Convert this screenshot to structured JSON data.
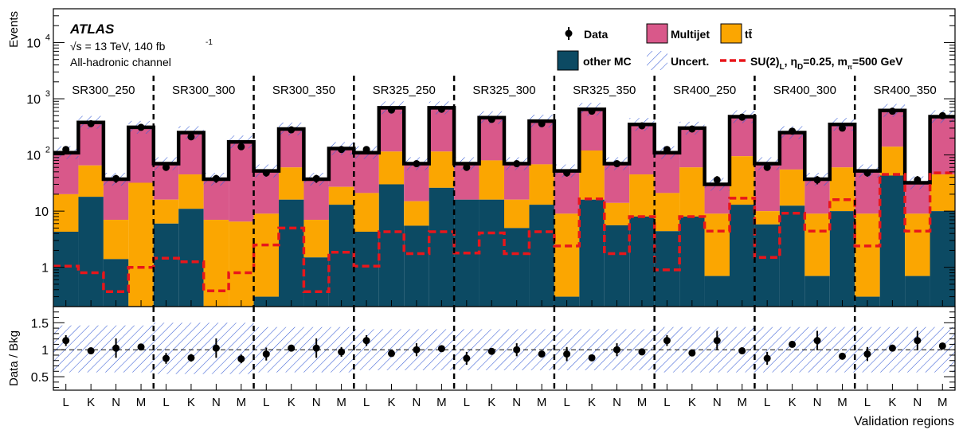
{
  "chart_data": {
    "type": "bar",
    "stacked": true,
    "log_scale": true,
    "ylabel": "Events",
    "xlabel": "Validation regions",
    "ylim": [
      0.2,
      40000
    ],
    "y_ticks": [
      {
        "value": 1,
        "base": "1",
        "exp": ""
      },
      {
        "value": 10,
        "base": "10",
        "exp": ""
      },
      {
        "value": 100,
        "base": "10",
        "exp": "2"
      },
      {
        "value": 1000,
        "base": "10",
        "exp": "3"
      },
      {
        "value": 10000,
        "base": "10",
        "exp": "4"
      }
    ],
    "experiment": "ATLAS",
    "energy_label": "√s = 13 TeV, 140 fb",
    "energy_exp": "-1",
    "channel_label": "All-hadronic channel",
    "legend": {
      "data": "Data",
      "multijet": "Multijet",
      "ttbar": "tt̄",
      "other": "other MC",
      "uncert": "Uncert.",
      "signal_main": "SU(2)",
      "signal_sub1": "L",
      "signal_mid": ", η",
      "signal_sub2": "D",
      "signal_mid2": "=0.25, m",
      "signal_sub3": "π",
      "signal_end": "=500 GeV"
    },
    "colors": {
      "multijet": "#d9588a",
      "ttbar": "#fba601",
      "other": "#0c4a63",
      "signal": "#e8161b",
      "uncert": "#3b5fd6"
    },
    "groups": [
      "SR300_250",
      "SR300_300",
      "SR300_350",
      "SR325_250",
      "SR325_300",
      "SR325_350",
      "SR400_250",
      "SR400_300",
      "SR400_350"
    ],
    "sub_bins": [
      "L",
      "K",
      "N",
      "M"
    ],
    "other_mc": [
      4.3,
      18,
      1.4,
      0.2,
      6,
      11,
      0.2,
      0.2,
      0.3,
      16,
      1.5,
      13,
      4.3,
      30,
      5.5,
      26,
      16,
      16,
      5,
      13,
      0.3,
      16,
      5.6,
      8,
      4.4,
      8,
      0.7,
      13,
      5.8,
      12.5,
      0.7,
      10,
      0.3,
      43,
      0.7,
      10
    ],
    "ttbar_top": [
      20,
      65,
      7,
      32,
      16,
      45,
      7,
      6.5,
      9,
      60,
      7,
      27,
      21,
      115,
      15,
      115,
      16,
      80,
      16,
      68,
      9,
      120,
      14,
      45,
      21,
      60,
      9,
      95,
      10,
      55,
      9,
      60,
      9,
      140,
      9,
      45
    ],
    "total": [
      110,
      380,
      37,
      310,
      70,
      250,
      37,
      170,
      52,
      290,
      37,
      130,
      110,
      690,
      70,
      690,
      70,
      460,
      70,
      400,
      52,
      650,
      70,
      350,
      110,
      300,
      30,
      480,
      70,
      250,
      37,
      350,
      52,
      620,
      32,
      480
    ],
    "data": [
      125,
      360,
      38,
      310,
      60,
      210,
      38,
      140,
      48,
      280,
      38,
      125,
      125,
      630,
      70,
      650,
      60,
      430,
      70,
      360,
      48,
      600,
      70,
      330,
      125,
      290,
      36,
      470,
      60,
      265,
      36,
      300,
      48,
      600,
      36,
      500
    ],
    "signal": [
      1.05,
      0.8,
      0.37,
      1.0,
      1.45,
      1.25,
      0.38,
      0.8,
      2.5,
      5.0,
      0.37,
      1.85,
      1.05,
      4.3,
      1.75,
      4.3,
      1.8,
      4.1,
      1.75,
      4.3,
      2.4,
      16.5,
      1.75,
      8,
      0.9,
      8,
      4.4,
      17,
      1.5,
      9.2,
      4.4,
      16,
      2.4,
      45,
      4.4,
      48
    ],
    "ratio": [
      1.17,
      0.98,
      1.03,
      1.05,
      0.84,
      0.85,
      1.03,
      0.83,
      0.92,
      1.03,
      1.03,
      0.96,
      1.17,
      0.93,
      1.0,
      1.02,
      0.84,
      0.97,
      1.0,
      0.92,
      0.92,
      0.85,
      1.0,
      0.96,
      1.17,
      0.94,
      1.17,
      0.98,
      0.84,
      1.1,
      1.17,
      0.88,
      0.92,
      1.03,
      1.17,
      1.07
    ],
    "ratio_err": [
      0.1,
      0.06,
      0.18,
      0.06,
      0.1,
      0.07,
      0.18,
      0.08,
      0.12,
      0.06,
      0.18,
      0.09,
      0.1,
      0.04,
      0.12,
      0.04,
      0.12,
      0.05,
      0.12,
      0.05,
      0.13,
      0.04,
      0.12,
      0.06,
      0.1,
      0.06,
      0.18,
      0.05,
      0.12,
      0.06,
      0.18,
      0.06,
      0.13,
      0.04,
      0.18,
      0.05
    ],
    "ratio_band": [
      [
        0.58,
        1.45
      ],
      [
        0.55,
        1.5
      ],
      [
        0.58,
        1.42
      ],
      [
        0.62,
        1.38
      ],
      [
        0.62,
        1.38
      ],
      [
        0.62,
        1.38
      ],
      [
        0.58,
        1.42
      ],
      [
        0.58,
        1.42
      ],
      [
        0.58,
        1.42
      ]
    ],
    "ratio_panel": {
      "ylabel": "Data / Bkg",
      "ylim": [
        0.25,
        1.8
      ],
      "y_ticks": [
        "0.5",
        "1",
        "1.5"
      ]
    }
  }
}
